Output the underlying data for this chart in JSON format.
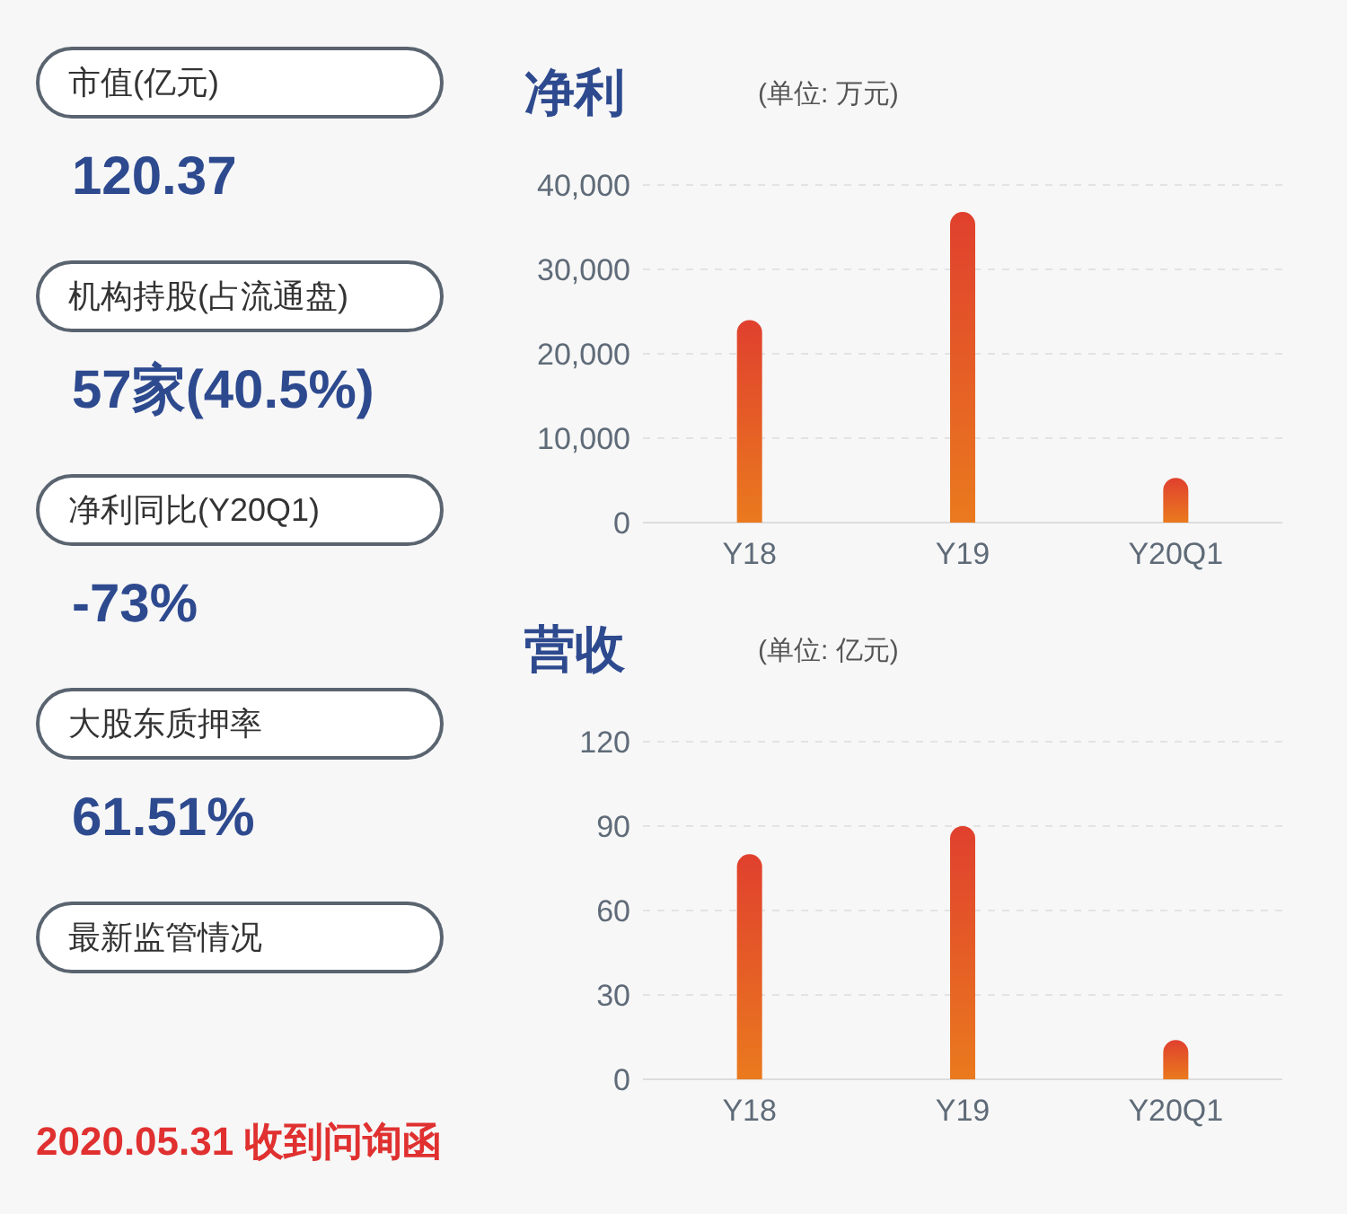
{
  "chart_data": [
    {
      "type": "other",
      "categories": [
        "市值(亿元)",
        "机构持股(占流通盘)",
        "净利同比(Y20Q1)",
        "大股东质押率",
        "最新监管情况"
      ],
      "value_labels": [
        "120.37",
        "57家(40.5%)",
        "-73%",
        "61.51%",
        null
      ],
      "annotations": [
        "2020.05.31 收到问询函"
      ]
    },
    {
      "type": "bar",
      "title": "净利",
      "subtitle": "(单位: 万元)",
      "categories": [
        "Y18",
        "Y19",
        "Y20Q1"
      ],
      "values": [
        24000,
        36800,
        5300
      ],
      "color": "#e0402e",
      "ylim": [
        0,
        40000
      ],
      "yticks": [
        {
          "value": 0,
          "label": "0"
        },
        {
          "value": 10000,
          "label": "10,000"
        },
        {
          "value": 20000,
          "label": "20,000"
        },
        {
          "value": 30000,
          "label": "30,000"
        },
        {
          "value": 40000,
          "label": "40,000"
        }
      ],
      "grid": "y"
    },
    {
      "type": "bar",
      "title": "营收",
      "subtitle": "(单位: 亿元)",
      "categories": [
        "Y18",
        "Y19",
        "Y20Q1"
      ],
      "values": [
        80,
        90,
        14
      ],
      "color": "#e0402e",
      "ylim": [
        0,
        120
      ],
      "yticks": [
        0,
        30,
        60,
        90,
        120
      ],
      "grid": "y"
    }
  ]
}
